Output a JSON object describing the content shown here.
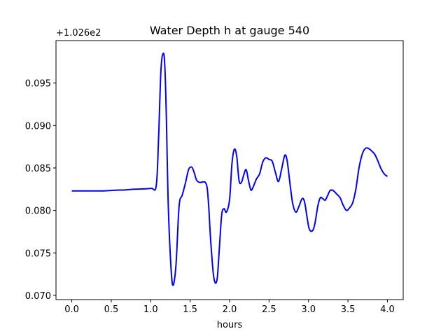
{
  "chart_data": {
    "type": "line",
    "title": "Water Depth h at gauge 540",
    "xlabel": "hours",
    "ylabel": "",
    "y_offset_label": "+1.026e2",
    "y_offset": 102.6,
    "xlim": [
      -0.2,
      4.2
    ],
    "ylim": [
      0.0695,
      0.1
    ],
    "xticks": [
      0.0,
      0.5,
      1.0,
      1.5,
      2.0,
      2.5,
      3.0,
      3.5,
      4.0
    ],
    "xtick_labels": [
      "0.0",
      "0.5",
      "1.0",
      "1.5",
      "2.0",
      "2.5",
      "3.0",
      "3.5",
      "4.0"
    ],
    "yticks": [
      0.07,
      0.075,
      0.08,
      0.085,
      0.09,
      0.095
    ],
    "ytick_labels": [
      "0.070",
      "0.075",
      "0.080",
      "0.085",
      "0.090",
      "0.095"
    ],
    "grid": false,
    "series": [
      {
        "color": "#0000ff",
        "x": [
          0.0,
          0.2,
          0.4,
          0.6,
          0.65,
          0.8,
          1.0,
          1.07,
          1.1,
          1.13,
          1.16,
          1.18,
          1.2,
          1.22,
          1.25,
          1.28,
          1.32,
          1.36,
          1.4,
          1.44,
          1.48,
          1.52,
          1.55,
          1.58,
          1.62,
          1.7,
          1.73,
          1.76,
          1.8,
          1.84,
          1.87,
          1.9,
          1.93,
          1.96,
          2.0,
          2.03,
          2.06,
          2.09,
          2.12,
          2.15,
          2.18,
          2.21,
          2.24,
          2.27,
          2.3,
          2.34,
          2.38,
          2.42,
          2.46,
          2.5,
          2.54,
          2.58,
          2.62,
          2.66,
          2.7,
          2.73,
          2.77,
          2.8,
          2.84,
          2.88,
          2.92,
          2.95,
          2.98,
          3.01,
          3.05,
          3.08,
          3.12,
          3.15,
          3.18,
          3.21,
          3.24,
          3.27,
          3.3,
          3.33,
          3.36,
          3.4,
          3.44,
          3.48,
          3.52,
          3.56,
          3.6,
          3.64,
          3.68,
          3.72,
          3.76,
          3.8,
          3.84,
          3.88,
          3.92,
          3.96,
          4.0
        ],
        "y": [
          0.0823,
          0.0823,
          0.0823,
          0.0824,
          0.0824,
          0.0825,
          0.0826,
          0.0829,
          0.0885,
          0.0965,
          0.0985,
          0.0968,
          0.0905,
          0.0815,
          0.0745,
          0.0712,
          0.0735,
          0.0805,
          0.0818,
          0.0832,
          0.0848,
          0.0851,
          0.0845,
          0.0836,
          0.0833,
          0.0832,
          0.0812,
          0.0765,
          0.0721,
          0.0718,
          0.0755,
          0.0795,
          0.0802,
          0.0798,
          0.0813,
          0.0855,
          0.0872,
          0.0864,
          0.0835,
          0.0833,
          0.0842,
          0.0848,
          0.0835,
          0.0824,
          0.0828,
          0.0837,
          0.0843,
          0.0857,
          0.0862,
          0.086,
          0.0858,
          0.0845,
          0.0834,
          0.0849,
          0.0865,
          0.0858,
          0.0828,
          0.0808,
          0.0798,
          0.0805,
          0.0814,
          0.081,
          0.0793,
          0.0778,
          0.0776,
          0.0784,
          0.0806,
          0.0815,
          0.0814,
          0.0812,
          0.0817,
          0.0823,
          0.0824,
          0.0822,
          0.0819,
          0.0815,
          0.0806,
          0.08,
          0.0803,
          0.0809,
          0.0825,
          0.085,
          0.0866,
          0.0873,
          0.0873,
          0.087,
          0.0866,
          0.0858,
          0.0849,
          0.0843,
          0.084
        ]
      }
    ]
  }
}
